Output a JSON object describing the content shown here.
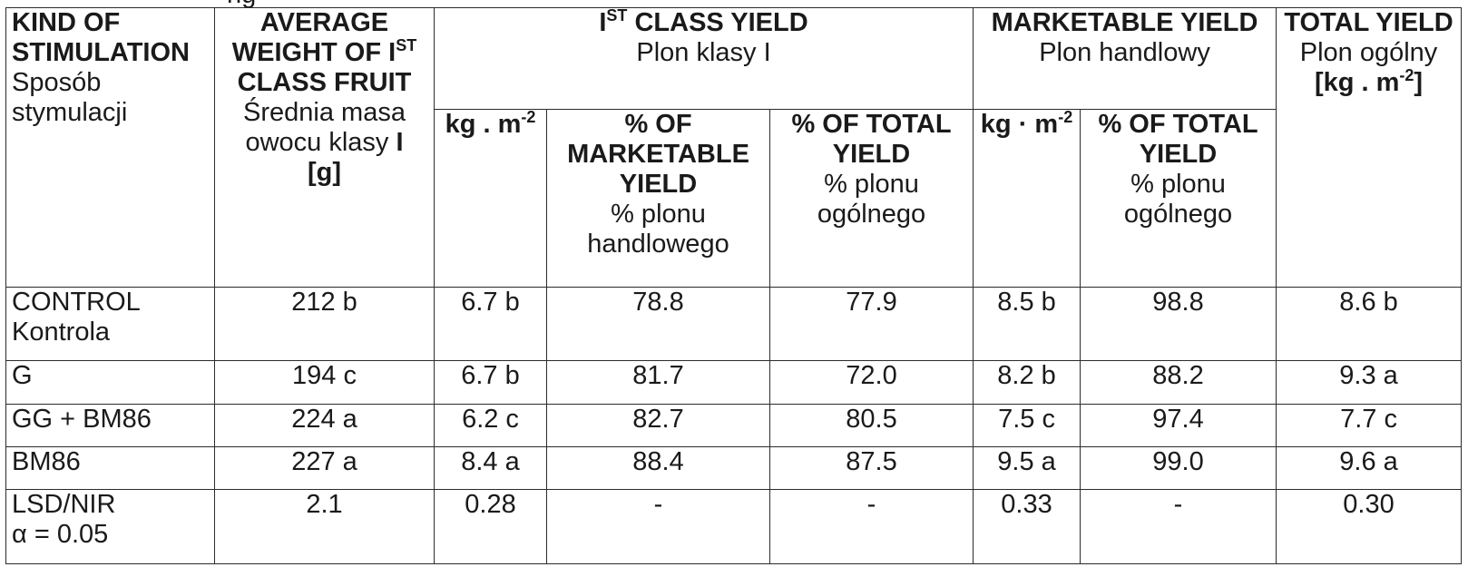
{
  "caption_fragment": "ng",
  "header": {
    "kind": {
      "en": "KIND OF STIMULATION",
      "pl": "Sposób stymulacji"
    },
    "avg_weight": {
      "en_pre": "AVERAGE WEIGHT OF I",
      "en_sup": "ST",
      "en_post": " CLASS FRUIT",
      "pl": "Średnia masa owocu klasy",
      "pl_bold": "I",
      "unit": "[g]"
    },
    "first_class": {
      "en_pre": "I",
      "en_sup": "ST",
      "en_post": " CLASS YIELD",
      "pl": "Plon klasy I"
    },
    "first_class_kg": {
      "pre": "kg . m",
      "sup": "-2"
    },
    "pct_marketable": {
      "en": "% OF MARKETABLE YIELD",
      "pl": "% plonu handlowego"
    },
    "pct_total": {
      "en": "% OF TOTAL YIELD",
      "pl": "% plonu ogólnego"
    },
    "marketable": {
      "en": "MARKETABLE YIELD",
      "pl": "Plon handlowy"
    },
    "marketable_kg": {
      "pre": "kg · m",
      "sup": "-2"
    },
    "marketable_pct_total": {
      "en": "% OF TOTAL YIELD",
      "pl": "% plonu ogólnego"
    },
    "total": {
      "en": "TOTAL YIELD",
      "pl": "Plon ogólny",
      "unit_pre": "[kg . m",
      "unit_sup": "-2",
      "unit_post": "]"
    }
  },
  "rows": [
    {
      "kind": "CONTROL",
      "kind_pl": "Kontrola",
      "avg": "212 b",
      "c1_kg": "6.7 b",
      "c1_pm": "78.8",
      "c1_pt": "77.9",
      "m_kg": "8.5 b",
      "m_pt": "98.8",
      "total": "8.6 b"
    },
    {
      "kind": "G",
      "kind_pl": "",
      "avg": "194 c",
      "c1_kg": "6.7 b",
      "c1_pm": "81.7",
      "c1_pt": "72.0",
      "m_kg": "8.2 b",
      "m_pt": "88.2",
      "total": "9.3 a"
    },
    {
      "kind": "GG + BM86",
      "kind_pl": "",
      "avg": "224 a",
      "c1_kg": "6.2 c",
      "c1_pm": "82.7",
      "c1_pt": "80.5",
      "m_kg": "7.5 c",
      "m_pt": "97.4",
      "total": "7.7 c"
    },
    {
      "kind": "BM86",
      "kind_pl": "",
      "avg": "227 a",
      "c1_kg": "8.4 a",
      "c1_pm": "88.4",
      "c1_pt": "87.5",
      "m_kg": "9.5 a",
      "m_pt": "99.0",
      "total": "9.6 a"
    },
    {
      "kind": "LSD/NIR",
      "kind_pl": "α = 0.05",
      "avg": "2.1",
      "c1_kg": "0.28",
      "c1_pm": "-",
      "c1_pt": "-",
      "m_kg": "0.33",
      "m_pt": "-",
      "total": "0.30"
    }
  ]
}
